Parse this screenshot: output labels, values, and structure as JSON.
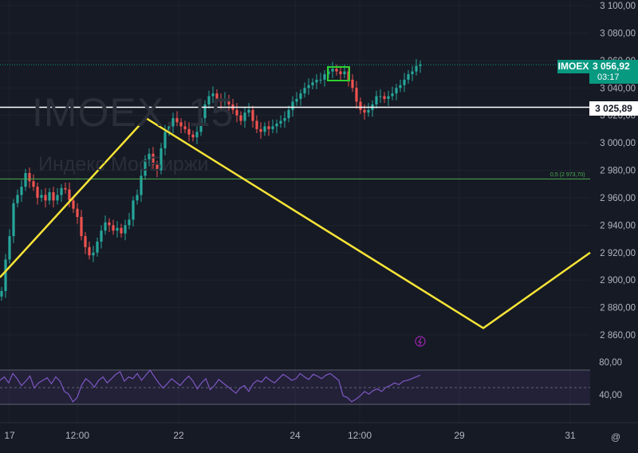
{
  "symbol": "IMOEX",
  "watermark": {
    "symbol": "IMOEX, 15",
    "description": "Индекс МосБиржи"
  },
  "price_tag": {
    "symbol": "IMOEX",
    "price": "3 056,92",
    "countdown": "03:17"
  },
  "line_tag": {
    "price": "3 025,89"
  },
  "fib_label": "0,5 (2 973,70)",
  "colors": {
    "background": "#161a25",
    "up": "#26a69a",
    "down": "#ef5350",
    "zigzag": "#f7e436",
    "fib": "#4caf50",
    "rsi": "#7e57c2",
    "box": "#2fd12f"
  },
  "chart_data": {
    "type": "candlestick",
    "price_axis": {
      "ticks": [
        "3 100,00",
        "3 080,00",
        "3 060,00",
        "3 040,00",
        "3 020,00",
        "3 000,00",
        "2 980,00",
        "2 960,00",
        "2 940,00",
        "2 920,00",
        "2 900,00",
        "2 880,00",
        "2 860,00"
      ],
      "range": [
        2855,
        3102
      ]
    },
    "time_axis": {
      "ticks": [
        "17",
        "12:00",
        "22",
        "24",
        "12:00",
        "29",
        "31"
      ]
    },
    "last_price": 3056.92,
    "horizontal_line": 3025.89,
    "fib_level": {
      "ratio": 0.5,
      "price": 2973.7
    },
    "close_series": [
      2892,
      2915,
      2932,
      2956,
      2962,
      2968,
      2978,
      2972,
      2968,
      2960,
      2962,
      2958,
      2964,
      2958,
      2962,
      2967,
      2966,
      2958,
      2952,
      2946,
      2932,
      2924,
      2918,
      2920,
      2928,
      2936,
      2942,
      2940,
      2936,
      2938,
      2934,
      2940,
      2944,
      2958,
      2962,
      2976,
      2988,
      2992,
      2984,
      2980,
      2996,
      3008,
      3012,
      3018,
      3015,
      3012,
      3010,
      3006,
      3004,
      3008,
      3018,
      3028,
      3034,
      3036,
      3032,
      3030,
      3032,
      3028,
      3024,
      3020,
      3016,
      3022,
      3024,
      3016,
      3010,
      3008,
      3012,
      3010,
      3012,
      3014,
      3016,
      3018,
      3024,
      3030,
      3032,
      3036,
      3040,
      3042,
      3044,
      3046,
      3046,
      3050,
      3052,
      3054,
      3052,
      3050,
      3052,
      3046,
      3040,
      3030,
      3024,
      3022,
      3024,
      3028,
      3034,
      3034,
      3032,
      3034,
      3036,
      3040,
      3042,
      3046,
      3050,
      3052,
      3056,
      3057
    ],
    "zigzag": [
      {
        "time": "16",
        "price": 2902
      },
      {
        "time": "19",
        "price": 3018
      },
      {
        "time": "28",
        "price": 2865
      },
      {
        "time": "31",
        "price": 2920
      }
    ],
    "rsi": {
      "ticks": [
        "80,00",
        "40,00"
      ],
      "upper": 70,
      "lower": 30,
      "values": [
        58,
        62,
        55,
        66,
        60,
        52,
        57,
        63,
        49,
        55,
        58,
        61,
        54,
        62,
        57,
        45,
        42,
        33,
        38,
        52,
        60,
        56,
        50,
        58,
        62,
        55,
        60,
        65,
        68,
        57,
        62,
        60,
        66,
        58,
        64,
        70,
        62,
        55,
        49,
        54,
        60,
        56,
        52,
        58,
        63,
        57,
        48,
        55,
        60,
        47,
        52,
        59,
        55,
        51,
        47,
        43,
        49,
        52,
        45,
        54,
        58,
        56,
        62,
        58,
        55,
        60,
        65,
        62,
        58,
        60,
        66,
        62,
        59,
        65,
        63,
        60,
        64,
        66,
        62,
        58,
        40,
        38,
        33,
        36,
        40,
        45,
        42,
        46,
        48,
        45,
        50,
        52,
        55,
        53,
        57,
        58,
        60,
        62,
        64
      ]
    }
  }
}
